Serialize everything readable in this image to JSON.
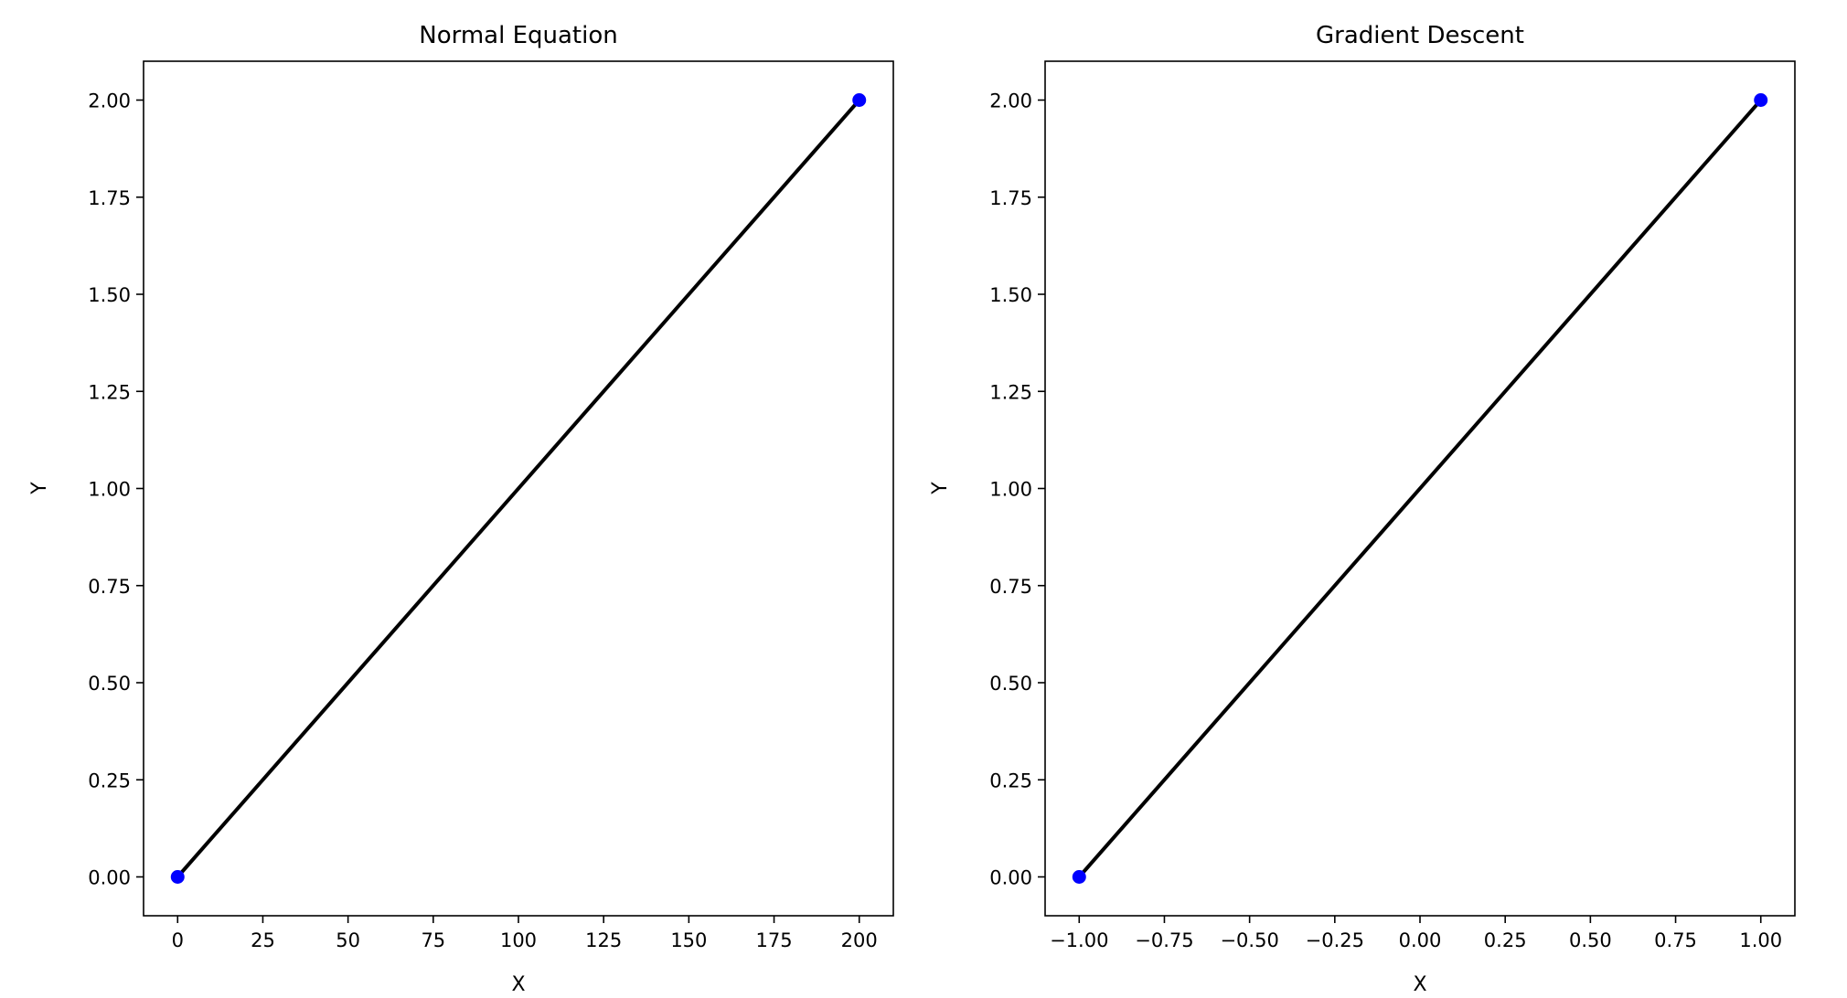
{
  "chart_data": [
    {
      "type": "scatter",
      "title": "Normal Equation",
      "xlabel": "X",
      "ylabel": "Y",
      "xlim": [
        -10,
        210
      ],
      "ylim": [
        -0.1,
        2.1
      ],
      "xticks": [
        0,
        25,
        50,
        75,
        100,
        125,
        150,
        175,
        200
      ],
      "xtick_labels": [
        "0",
        "25",
        "50",
        "75",
        "100",
        "125",
        "150",
        "175",
        "200"
      ],
      "yticks": [
        0,
        0.25,
        0.5,
        0.75,
        1.0,
        1.25,
        1.5,
        1.75,
        2.0
      ],
      "ytick_labels": [
        "0.00",
        "0.25",
        "0.50",
        "0.75",
        "1.00",
        "1.25",
        "1.50",
        "1.75",
        "2.00"
      ],
      "grid": false,
      "points": {
        "x": [
          0,
          200
        ],
        "y": [
          0,
          2
        ],
        "color": "#0000ff"
      },
      "fit_line": {
        "x": [
          0,
          200
        ],
        "y": [
          0,
          2
        ],
        "color": "#000000"
      }
    },
    {
      "type": "scatter",
      "title": "Gradient Descent",
      "xlabel": "X",
      "ylabel": "Y",
      "xlim": [
        -1.1,
        1.1
      ],
      "ylim": [
        -0.1,
        2.1
      ],
      "xticks": [
        -1.0,
        -0.75,
        -0.5,
        -0.25,
        0.0,
        0.25,
        0.5,
        0.75,
        1.0
      ],
      "xtick_labels": [
        "−1.00",
        "−0.75",
        "−0.50",
        "−0.25",
        "0.00",
        "0.25",
        "0.50",
        "0.75",
        "1.00"
      ],
      "yticks": [
        0,
        0.25,
        0.5,
        0.75,
        1.0,
        1.25,
        1.5,
        1.75,
        2.0
      ],
      "ytick_labels": [
        "0.00",
        "0.25",
        "0.50",
        "0.75",
        "1.00",
        "1.25",
        "1.50",
        "1.75",
        "2.00"
      ],
      "grid": false,
      "points": {
        "x": [
          -1,
          1
        ],
        "y": [
          0,
          2
        ],
        "color": "#0000ff"
      },
      "fit_line": {
        "x": [
          -1,
          1
        ],
        "y": [
          0,
          2
        ],
        "color": "#000000"
      }
    }
  ]
}
